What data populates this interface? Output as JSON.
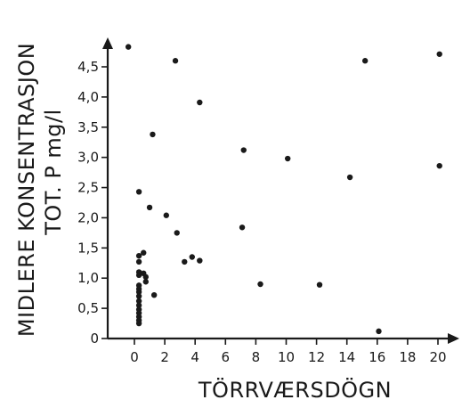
{
  "chart_data": {
    "type": "scatter",
    "title": "",
    "xlabel": "TÖRRVÆRSDÖGN",
    "ylabel_lines": [
      "MIDLERE KONSENTRASJON",
      "TOT. P mg/l"
    ],
    "xlim": [
      -1.2,
      21.5
    ],
    "ylim": [
      0,
      5.0
    ],
    "x_ticks": [
      0,
      2,
      4,
      6,
      8,
      10,
      12,
      14,
      16,
      18,
      20
    ],
    "x_tick_labels": [
      "0",
      "2",
      "4",
      "6",
      "8",
      "10",
      "12",
      "14",
      "16",
      "18",
      "20"
    ],
    "y_ticks": [
      0,
      0.5,
      1.0,
      1.5,
      2.0,
      2.5,
      3.0,
      3.5,
      4.0,
      4.5
    ],
    "y_tick_labels": [
      "0",
      "0,5",
      "1,0",
      "1,5",
      "2,0",
      "2,5",
      "3,0",
      "3,5",
      "4,0",
      "4,5"
    ],
    "grid": false,
    "points": [
      {
        "x": -0.4,
        "y": 4.83
      },
      {
        "x": 0.3,
        "y": 2.43
      },
      {
        "x": 0.3,
        "y": 1.37
      },
      {
        "x": 0.3,
        "y": 1.27
      },
      {
        "x": 0.3,
        "y": 1.1
      },
      {
        "x": 0.3,
        "y": 1.05
      },
      {
        "x": 0.3,
        "y": 0.88
      },
      {
        "x": 0.3,
        "y": 0.82
      },
      {
        "x": 0.3,
        "y": 0.77
      },
      {
        "x": 0.3,
        "y": 0.7
      },
      {
        "x": 0.3,
        "y": 0.62
      },
      {
        "x": 0.3,
        "y": 0.55
      },
      {
        "x": 0.3,
        "y": 0.48
      },
      {
        "x": 0.3,
        "y": 0.42
      },
      {
        "x": 0.3,
        "y": 0.36
      },
      {
        "x": 0.3,
        "y": 0.3
      },
      {
        "x": 0.3,
        "y": 0.25
      },
      {
        "x": 0.6,
        "y": 1.42
      },
      {
        "x": 0.6,
        "y": 1.08
      },
      {
        "x": 0.75,
        "y": 1.02
      },
      {
        "x": 0.75,
        "y": 0.94
      },
      {
        "x": 1.0,
        "y": 2.17
      },
      {
        "x": 1.2,
        "y": 3.38
      },
      {
        "x": 1.3,
        "y": 0.72
      },
      {
        "x": 2.1,
        "y": 2.04
      },
      {
        "x": 2.7,
        "y": 4.6
      },
      {
        "x": 2.8,
        "y": 1.75
      },
      {
        "x": 3.3,
        "y": 1.27
      },
      {
        "x": 3.8,
        "y": 1.35
      },
      {
        "x": 4.3,
        "y": 3.91
      },
      {
        "x": 4.3,
        "y": 1.29
      },
      {
        "x": 7.1,
        "y": 1.84
      },
      {
        "x": 7.2,
        "y": 3.12
      },
      {
        "x": 8.3,
        "y": 0.9
      },
      {
        "x": 10.1,
        "y": 2.98
      },
      {
        "x": 12.2,
        "y": 0.89
      },
      {
        "x": 14.2,
        "y": 2.67
      },
      {
        "x": 15.2,
        "y": 4.6
      },
      {
        "x": 16.1,
        "y": 0.12
      },
      {
        "x": 20.1,
        "y": 4.71
      },
      {
        "x": 20.1,
        "y": 2.86
      }
    ]
  }
}
